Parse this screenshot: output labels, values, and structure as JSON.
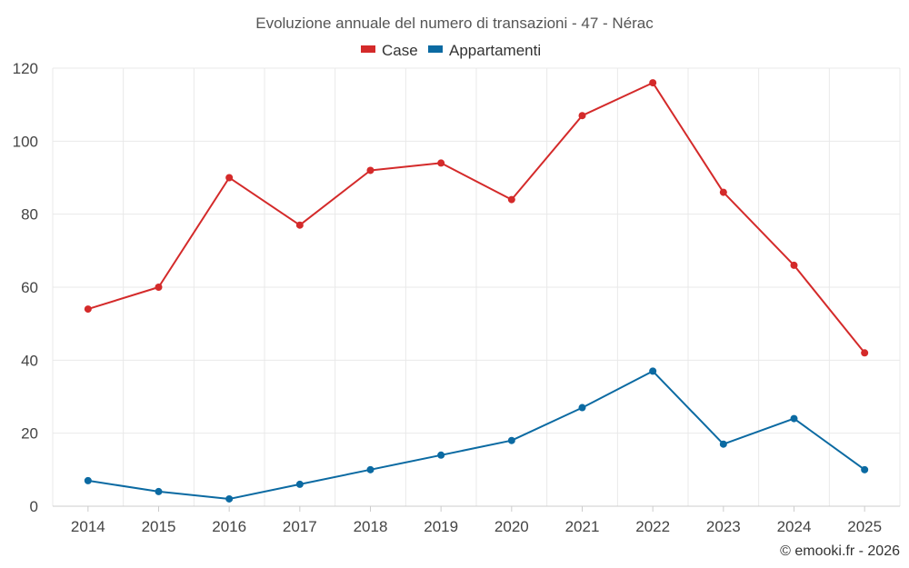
{
  "chart_data": {
    "type": "line",
    "title": "Evoluzione annuale del numero di transazioni - 47 - Nérac",
    "categories": [
      "2014",
      "2015",
      "2016",
      "2017",
      "2018",
      "2019",
      "2020",
      "2021",
      "2022",
      "2023",
      "2024",
      "2025"
    ],
    "series": [
      {
        "name": "Case",
        "color": "#d42a2a",
        "values": [
          54,
          60,
          90,
          77,
          92,
          94,
          84,
          107,
          116,
          86,
          66,
          42
        ]
      },
      {
        "name": "Appartamenti",
        "color": "#0b6aa2",
        "values": [
          7,
          4,
          2,
          6,
          10,
          14,
          18,
          27,
          37,
          17,
          24,
          10
        ]
      }
    ],
    "yticks": [
      0,
      20,
      40,
      60,
      80,
      100,
      120
    ],
    "ylim": [
      0,
      120
    ],
    "xlabel": "",
    "ylabel": "",
    "grid": true,
    "legend_position": "top-center"
  },
  "credit": "© emooki.fr - 2026"
}
